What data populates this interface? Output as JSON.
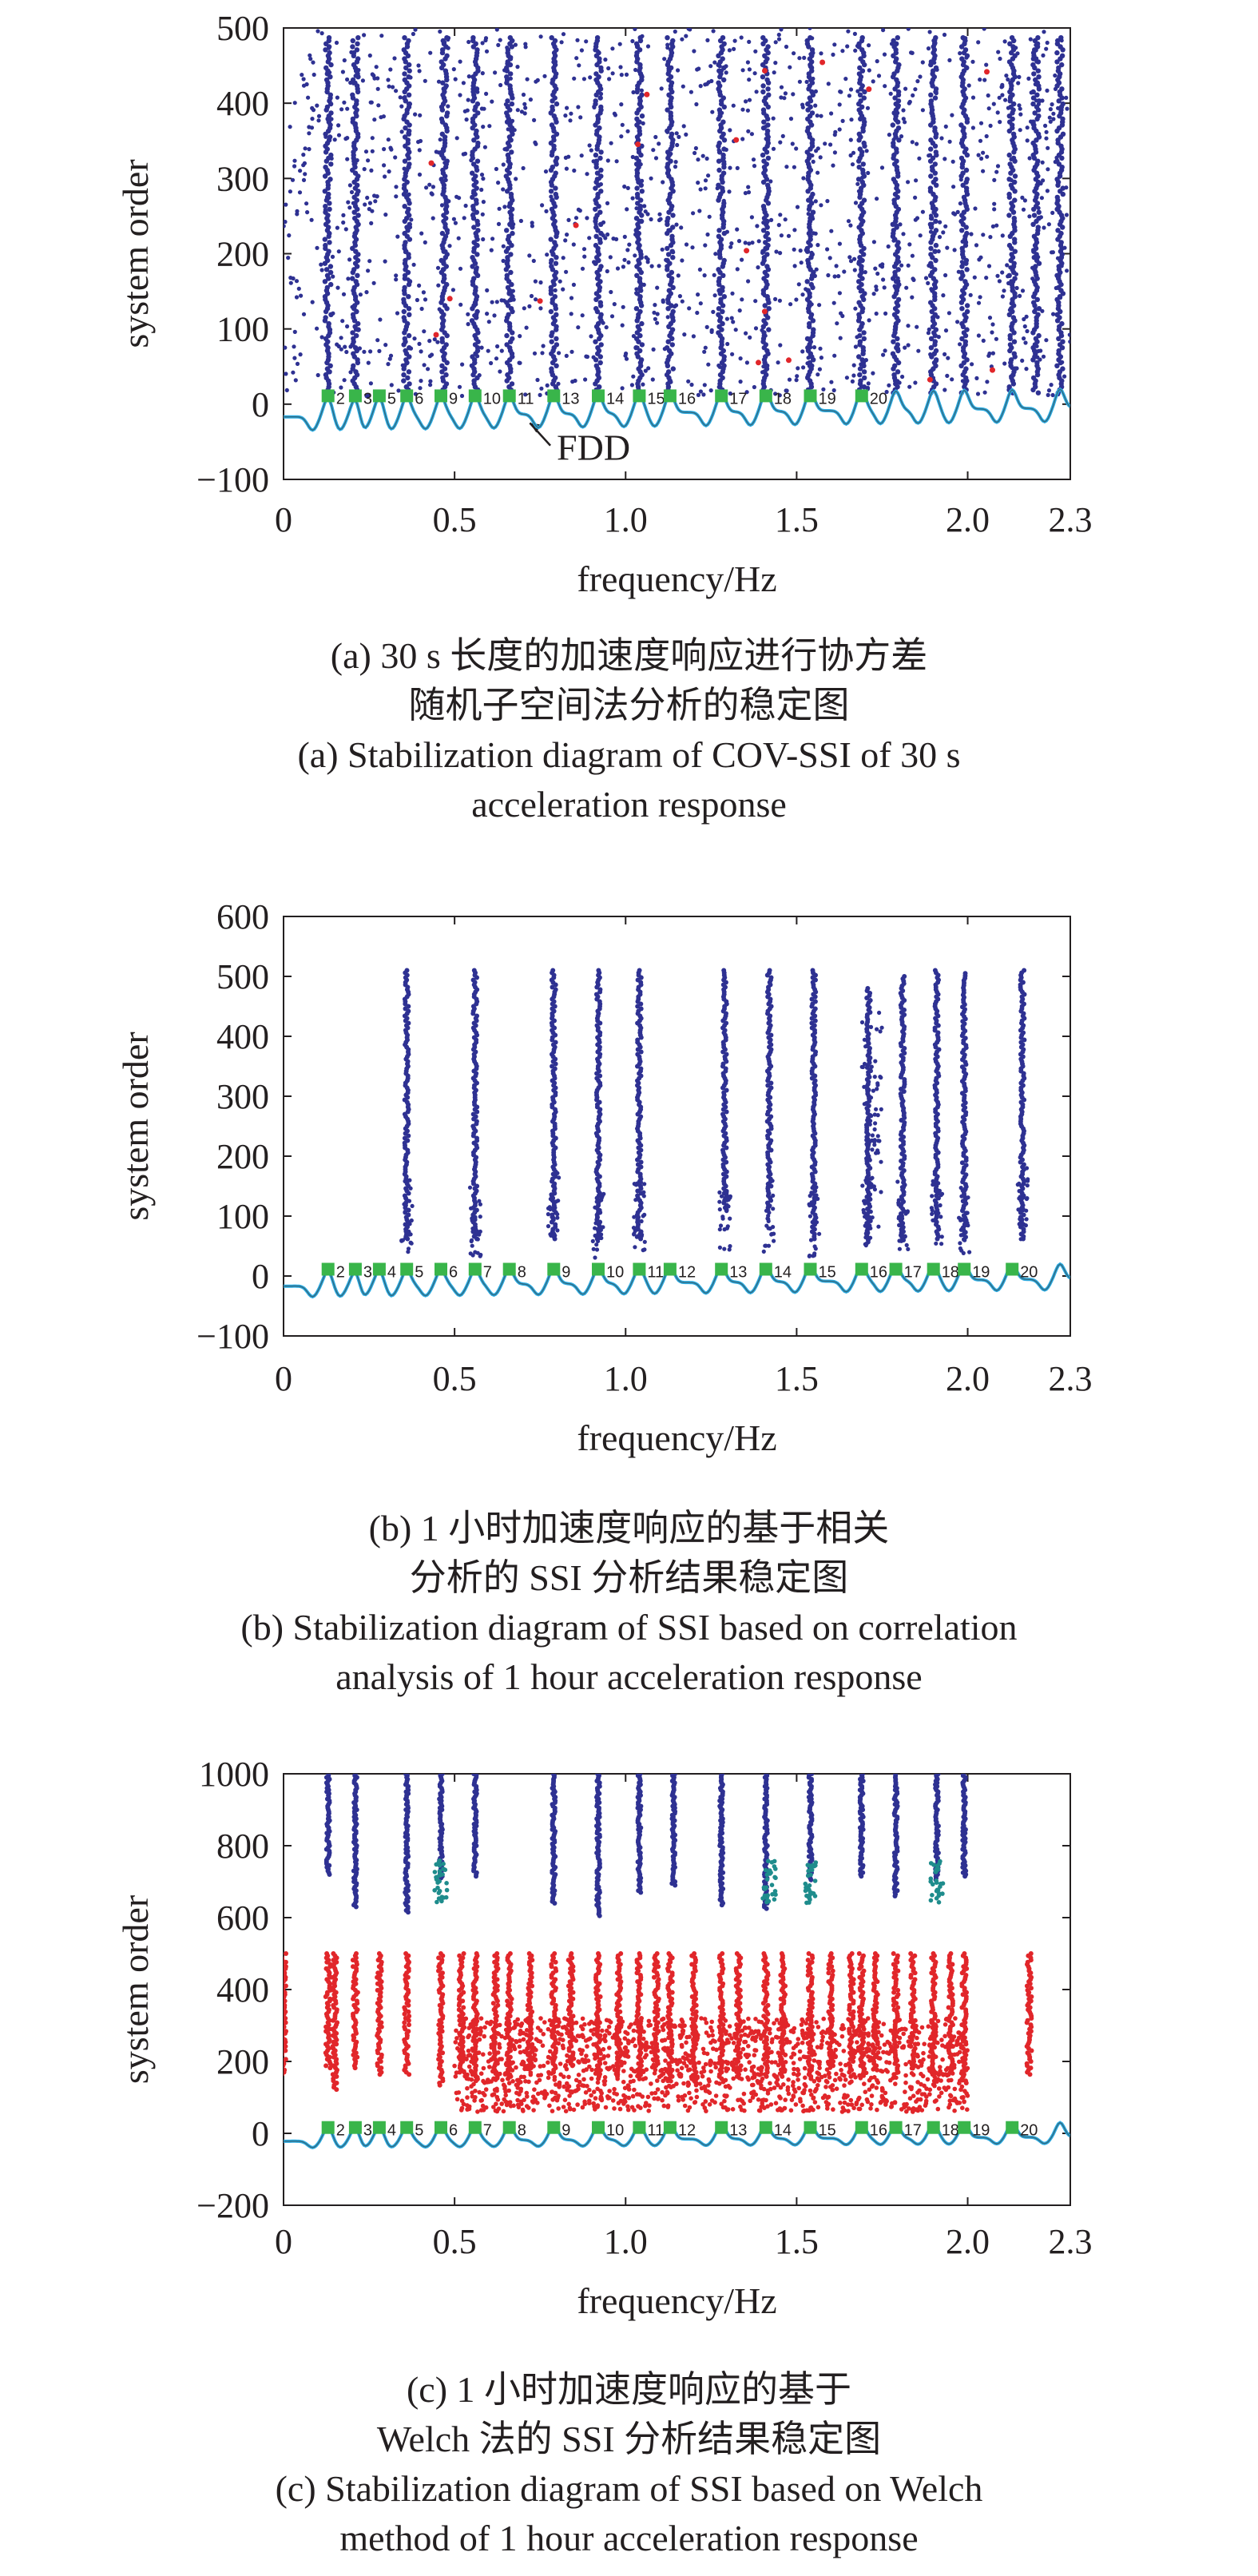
{
  "colors": {
    "stable": "#2e3192",
    "red": "#e1262a",
    "fdd_curve": "#29abe2",
    "fdd_dark": "#3d3d3d",
    "peak_marker": "#39b54a",
    "axis": "#231f20"
  },
  "chart_data": [
    {
      "type": "scatter",
      "panel": "a",
      "xlabel": "frequency/Hz",
      "ylabel": "system order",
      "xlim": [
        0,
        2.3
      ],
      "ylim": [
        -100,
        500
      ],
      "xticks": [
        "0",
        "0.5",
        "1.0",
        "1.5",
        "2.0",
        "2.3"
      ],
      "yticks": [
        "500",
        "400",
        "300",
        "200",
        "100",
        "0",
        "−100"
      ],
      "annotation": "FDD",
      "peak_labels": [
        "2",
        "3",
        "5",
        "6",
        "9",
        "10",
        "11",
        "13",
        "14",
        "15",
        "16",
        "17",
        "18",
        "19",
        "20"
      ],
      "stable_freqs": [
        0.13,
        0.21,
        0.36,
        0.47,
        0.56,
        0.66,
        0.79,
        0.92,
        1.04,
        1.13,
        1.28,
        1.41,
        1.54,
        1.69,
        1.79,
        1.9,
        1.99,
        2.13,
        2.2,
        2.27
      ],
      "caption_cn": [
        "(a) 30 s 长度的加速度响应进行协方差",
        "随机子空间法分析的稳定图"
      ],
      "caption_en": [
        "(a) Stabilization diagram of COV-SSI of 30 s",
        "acceleration response"
      ]
    },
    {
      "type": "scatter",
      "panel": "b",
      "xlabel": "frequency/Hz",
      "ylabel": "system order",
      "xlim": [
        0,
        2.3
      ],
      "ylim": [
        -100,
        600
      ],
      "xticks": [
        "0",
        "0.5",
        "1.0",
        "1.5",
        "2.0",
        "2.3"
      ],
      "yticks": [
        "600",
        "500",
        "400",
        "300",
        "200",
        "100",
        "0",
        "−100"
      ],
      "peak_labels": [
        "2",
        "3",
        "4",
        "5",
        "6",
        "7",
        "8",
        "9",
        "10",
        "11",
        "12",
        "13",
        "14",
        "15",
        "16",
        "17",
        "18",
        "19",
        "20"
      ],
      "stable_freqs": [
        0.36,
        0.56,
        0.79,
        0.92,
        1.04,
        1.29,
        1.42,
        1.55,
        1.71,
        1.81,
        1.91,
        1.99,
        2.16
      ],
      "caption_cn": [
        "(b) 1 小时加速度响应的基于相关",
        "分析的 SSI 分析结果稳定图"
      ],
      "caption_en": [
        "(b) Stabilization diagram of SSI based on correlation",
        "analysis of 1 hour acceleration response"
      ]
    },
    {
      "type": "scatter",
      "panel": "c",
      "xlabel": "frequency/Hz",
      "ylabel": "system order",
      "xlim": [
        0,
        2.3
      ],
      "ylim": [
        -200,
        1000
      ],
      "xticks": [
        "0",
        "0.5",
        "1.0",
        "1.5",
        "2.0",
        "2.3"
      ],
      "yticks": [
        "1000",
        "800",
        "600",
        "400",
        "200",
        "0",
        "−200"
      ],
      "peak_labels": [
        "2",
        "3",
        "4",
        "5",
        "6",
        "7",
        "8",
        "9",
        "10",
        "11",
        "12",
        "13",
        "14",
        "15",
        "16",
        "17",
        "18",
        "19",
        "20"
      ],
      "stable_freqs": [
        0.13,
        0.21,
        0.36,
        0.46,
        0.56,
        0.79,
        0.92,
        1.04,
        1.14,
        1.28,
        1.41,
        1.54,
        1.69,
        1.79,
        1.91,
        1.99
      ],
      "caption_cn": [
        "(c) 1 小时加速度响应的基于",
        "Welch 法的 SSI 分析结果稳定图"
      ],
      "caption_en": [
        "(c) Stabilization diagram of SSI based on Welch",
        "method of 1 hour acceleration response"
      ]
    }
  ]
}
